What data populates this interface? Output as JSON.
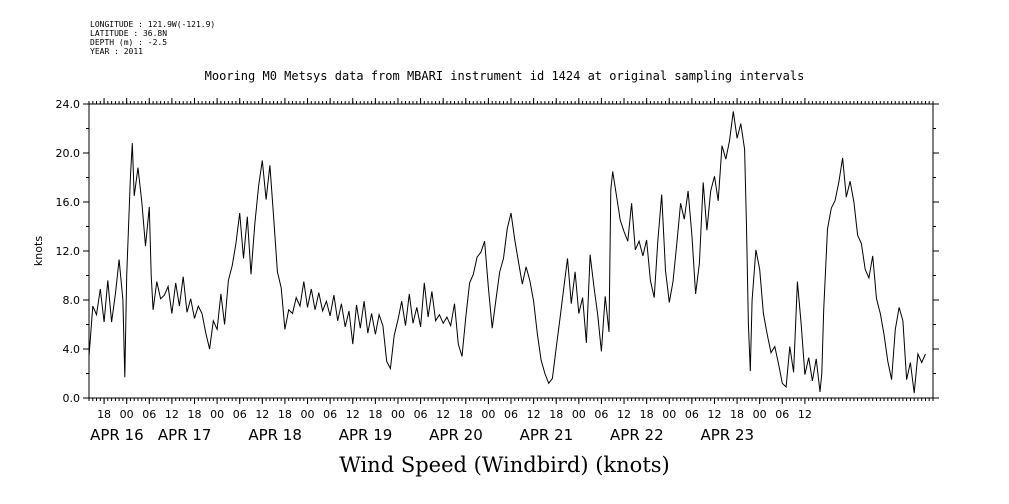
{
  "meta": {
    "longitude": "LONGITUDE : 121.9W(-121.9)",
    "latitude": "LATITUDE : 36.8N",
    "depth": "DEPTH (m) : -2.5",
    "year": "YEAR : 2011"
  },
  "chart_data": {
    "type": "line",
    "title": "Mooring M0 Metsys data from MBARI instrument id 1424 at original sampling intervals",
    "xlabel": "Wind Speed (Windbird) (knots)",
    "ylabel": "knots",
    "ylim": [
      0,
      24
    ],
    "xlim": [
      "2011-04-15T14:00",
      "2011-04-23T18:00"
    ],
    "x_unit": "hours since 2011-04-16T00:00",
    "yticks": [
      "0.0",
      "4.0",
      "8.0",
      "12.0",
      "16.0",
      "20.0",
      "24.0"
    ],
    "hour_ticks": [
      {
        "t": -6,
        "label": "18"
      },
      {
        "t": 0,
        "label": "00"
      },
      {
        "t": 6,
        "label": "06"
      },
      {
        "t": 12,
        "label": "12"
      },
      {
        "t": 18,
        "label": "18"
      },
      {
        "t": 24,
        "label": "00"
      },
      {
        "t": 30,
        "label": "06"
      },
      {
        "t": 36,
        "label": "12"
      },
      {
        "t": 42,
        "label": "18"
      },
      {
        "t": 48,
        "label": "00"
      },
      {
        "t": 54,
        "label": "06"
      },
      {
        "t": 60,
        "label": "12"
      },
      {
        "t": 66,
        "label": "18"
      },
      {
        "t": 72,
        "label": "00"
      },
      {
        "t": 78,
        "label": "06"
      },
      {
        "t": 84,
        "label": "12"
      },
      {
        "t": 90,
        "label": "18"
      },
      {
        "t": 96,
        "label": "00"
      },
      {
        "t": 102,
        "label": "06"
      },
      {
        "t": 108,
        "label": "12"
      },
      {
        "t": 114,
        "label": "18"
      },
      {
        "t": 120,
        "label": "00"
      },
      {
        "t": 126,
        "label": "06"
      },
      {
        "t": 132,
        "label": "12"
      },
      {
        "t": 138,
        "label": "18"
      },
      {
        "t": 144,
        "label": "00"
      },
      {
        "t": 150,
        "label": "06"
      },
      {
        "t": 156,
        "label": "12"
      },
      {
        "t": 162,
        "label": "18"
      },
      {
        "t": 168,
        "label": "00"
      },
      {
        "t": 174,
        "label": "06"
      },
      {
        "t": 180,
        "label": "12"
      }
    ],
    "date_labels": [
      {
        "t": -6,
        "label": "APR 16"
      },
      {
        "t": 12,
        "label": "APR 17"
      },
      {
        "t": 36,
        "label": "APR 18"
      },
      {
        "t": 60,
        "label": "APR 19"
      },
      {
        "t": 84,
        "label": "APR 20"
      },
      {
        "t": 108,
        "label": "APR 21"
      },
      {
        "t": 132,
        "label": "APR 22"
      },
      {
        "t": 156,
        "label": "APR 23"
      }
    ],
    "series": [
      {
        "color": "#000000",
        "points": [
          [
            -10,
            3.4
          ],
          [
            -9,
            7.5
          ],
          [
            -8,
            6.8
          ],
          [
            -7,
            8.9
          ],
          [
            -6,
            6.2
          ],
          [
            -5,
            9.6
          ],
          [
            -4,
            6.2
          ],
          [
            -3,
            8.5
          ],
          [
            -2,
            11.3
          ],
          [
            -1,
            8.0
          ],
          [
            -0.5,
            1.7
          ],
          [
            0,
            10.0
          ],
          [
            1,
            18.0
          ],
          [
            1.5,
            20.8
          ],
          [
            2,
            16.5
          ],
          [
            3,
            18.8
          ],
          [
            4,
            16.0
          ],
          [
            5,
            12.4
          ],
          [
            6,
            15.6
          ],
          [
            6.5,
            10.0
          ],
          [
            7,
            7.2
          ],
          [
            8,
            9.5
          ],
          [
            9,
            8.1
          ],
          [
            10,
            8.4
          ],
          [
            11,
            9.1
          ],
          [
            12,
            6.9
          ],
          [
            13,
            9.4
          ],
          [
            14,
            7.5
          ],
          [
            15,
            9.9
          ],
          [
            16,
            7.0
          ],
          [
            17,
            8.1
          ],
          [
            18,
            6.5
          ],
          [
            19,
            7.5
          ],
          [
            20,
            6.9
          ],
          [
            21,
            5.3
          ],
          [
            22,
            4.0
          ],
          [
            23,
            6.3
          ],
          [
            24,
            5.6
          ],
          [
            25,
            8.5
          ],
          [
            26,
            6.0
          ],
          [
            27,
            9.6
          ],
          [
            28,
            10.8
          ],
          [
            29,
            12.6
          ],
          [
            30,
            15.1
          ],
          [
            31,
            11.4
          ],
          [
            32,
            14.8
          ],
          [
            33,
            10.1
          ],
          [
            34,
            14.2
          ],
          [
            35,
            17.3
          ],
          [
            36,
            19.4
          ],
          [
            37,
            16.2
          ],
          [
            38,
            19.0
          ],
          [
            39,
            14.8
          ],
          [
            40,
            10.3
          ],
          [
            41,
            9.0
          ],
          [
            42,
            5.6
          ],
          [
            43,
            7.2
          ],
          [
            44,
            6.9
          ],
          [
            45,
            8.2
          ],
          [
            46,
            7.5
          ],
          [
            47,
            9.5
          ],
          [
            48,
            7.4
          ],
          [
            49,
            8.9
          ],
          [
            50,
            7.2
          ],
          [
            51,
            8.6
          ],
          [
            52,
            7.1
          ],
          [
            53,
            7.9
          ],
          [
            54,
            6.7
          ],
          [
            55,
            8.4
          ],
          [
            56,
            6.3
          ],
          [
            57,
            7.7
          ],
          [
            58,
            5.8
          ],
          [
            59,
            7.1
          ],
          [
            60,
            4.4
          ],
          [
            61,
            7.6
          ],
          [
            62,
            5.7
          ],
          [
            63,
            7.9
          ],
          [
            64,
            5.3
          ],
          [
            65,
            6.9
          ],
          [
            66,
            5.2
          ],
          [
            67,
            6.8
          ],
          [
            68,
            5.9
          ],
          [
            69,
            3.0
          ],
          [
            70,
            2.4
          ],
          [
            71,
            5.1
          ],
          [
            72,
            6.4
          ],
          [
            73,
            7.9
          ],
          [
            74,
            5.9
          ],
          [
            75,
            8.5
          ],
          [
            76,
            6.1
          ],
          [
            77,
            7.4
          ],
          [
            78,
            5.8
          ],
          [
            79,
            9.4
          ],
          [
            80,
            6.6
          ],
          [
            81,
            8.7
          ],
          [
            82,
            6.3
          ],
          [
            83,
            6.8
          ],
          [
            84,
            6.1
          ],
          [
            85,
            6.6
          ],
          [
            86,
            5.9
          ],
          [
            87,
            7.7
          ],
          [
            88,
            4.4
          ],
          [
            89,
            3.4
          ],
          [
            90,
            6.6
          ],
          [
            91,
            9.4
          ],
          [
            92,
            10.1
          ],
          [
            93,
            11.5
          ],
          [
            94,
            11.9
          ],
          [
            95,
            12.8
          ],
          [
            96,
            9.0
          ],
          [
            97,
            5.7
          ],
          [
            98,
            8.0
          ],
          [
            99,
            10.3
          ],
          [
            100,
            11.4
          ],
          [
            101,
            13.8
          ],
          [
            102,
            15.1
          ],
          [
            103,
            12.9
          ],
          [
            104,
            11.1
          ],
          [
            105,
            9.3
          ],
          [
            106,
            10.7
          ],
          [
            107,
            9.6
          ],
          [
            108,
            7.9
          ],
          [
            109,
            5.2
          ],
          [
            110,
            3.1
          ],
          [
            111,
            2.0
          ],
          [
            112,
            1.2
          ],
          [
            113,
            1.6
          ],
          [
            114,
            4.1
          ],
          [
            115,
            6.5
          ],
          [
            116,
            9.0
          ],
          [
            117,
            11.4
          ],
          [
            118,
            7.7
          ],
          [
            119,
            10.3
          ],
          [
            120,
            6.9
          ],
          [
            121,
            8.2
          ],
          [
            122,
            4.5
          ],
          [
            123,
            11.7
          ],
          [
            124,
            9.1
          ],
          [
            125,
            6.8
          ],
          [
            126,
            3.8
          ],
          [
            127,
            8.3
          ],
          [
            128,
            5.4
          ],
          [
            128.5,
            17.0
          ],
          [
            129,
            18.5
          ],
          [
            130,
            16.5
          ],
          [
            131,
            14.5
          ],
          [
            132,
            13.6
          ],
          [
            133,
            12.8
          ],
          [
            134,
            15.9
          ],
          [
            135,
            12.1
          ],
          [
            136,
            12.8
          ],
          [
            137,
            11.6
          ],
          [
            138,
            12.9
          ],
          [
            139,
            9.6
          ],
          [
            140,
            8.2
          ],
          [
            141,
            12.9
          ],
          [
            142,
            16.6
          ],
          [
            143,
            10.4
          ],
          [
            144,
            7.8
          ],
          [
            145,
            9.5
          ],
          [
            146,
            12.6
          ],
          [
            147,
            15.9
          ],
          [
            148,
            14.6
          ],
          [
            149,
            16.9
          ],
          [
            150,
            13.3
          ],
          [
            151,
            8.5
          ],
          [
            152,
            11.0
          ],
          [
            153,
            17.6
          ],
          [
            154,
            13.7
          ],
          [
            155,
            16.9
          ],
          [
            156,
            18.1
          ],
          [
            157,
            16.1
          ],
          [
            158,
            20.6
          ],
          [
            159,
            19.5
          ],
          [
            160,
            21.0
          ],
          [
            161,
            23.4
          ],
          [
            162,
            21.2
          ],
          [
            163,
            22.4
          ],
          [
            164,
            20.3
          ],
          [
            164.5,
            14.0
          ],
          [
            165,
            6.0
          ],
          [
            165.5,
            2.2
          ],
          [
            166,
            8.0
          ],
          [
            167,
            12.1
          ],
          [
            168,
            10.5
          ],
          [
            169,
            6.9
          ],
          [
            170,
            5.2
          ],
          [
            171,
            3.7
          ],
          [
            172,
            4.2
          ],
          [
            173,
            2.8
          ],
          [
            174,
            1.2
          ],
          [
            175,
            0.9
          ],
          [
            176,
            4.2
          ],
          [
            177,
            2.1
          ],
          [
            178,
            9.5
          ],
          [
            179,
            6.1
          ],
          [
            180,
            1.9
          ],
          [
            181,
            3.3
          ],
          [
            182,
            1.4
          ],
          [
            183,
            3.2
          ],
          [
            184,
            0.5
          ],
          [
            184.5,
            2.0
          ],
          [
            185,
            7.2
          ],
          [
            186,
            13.8
          ],
          [
            187,
            15.5
          ],
          [
            188,
            16.1
          ],
          [
            189,
            17.6
          ],
          [
            190,
            19.6
          ],
          [
            191,
            16.4
          ],
          [
            192,
            17.7
          ],
          [
            193,
            16.0
          ],
          [
            194,
            13.3
          ],
          [
            195,
            12.6
          ],
          [
            196,
            10.5
          ],
          [
            197,
            9.8
          ],
          [
            198,
            11.6
          ],
          [
            199,
            8.1
          ],
          [
            200,
            6.9
          ],
          [
            201,
            5.2
          ],
          [
            202,
            3.0
          ],
          [
            203,
            1.5
          ],
          [
            204,
            5.6
          ],
          [
            205,
            7.4
          ],
          [
            206,
            6.3
          ],
          [
            207,
            1.5
          ],
          [
            208,
            2.9
          ],
          [
            209,
            0.4
          ],
          [
            210,
            3.6
          ],
          [
            211,
            2.9
          ],
          [
            212,
            3.6
          ]
        ]
      }
    ]
  }
}
